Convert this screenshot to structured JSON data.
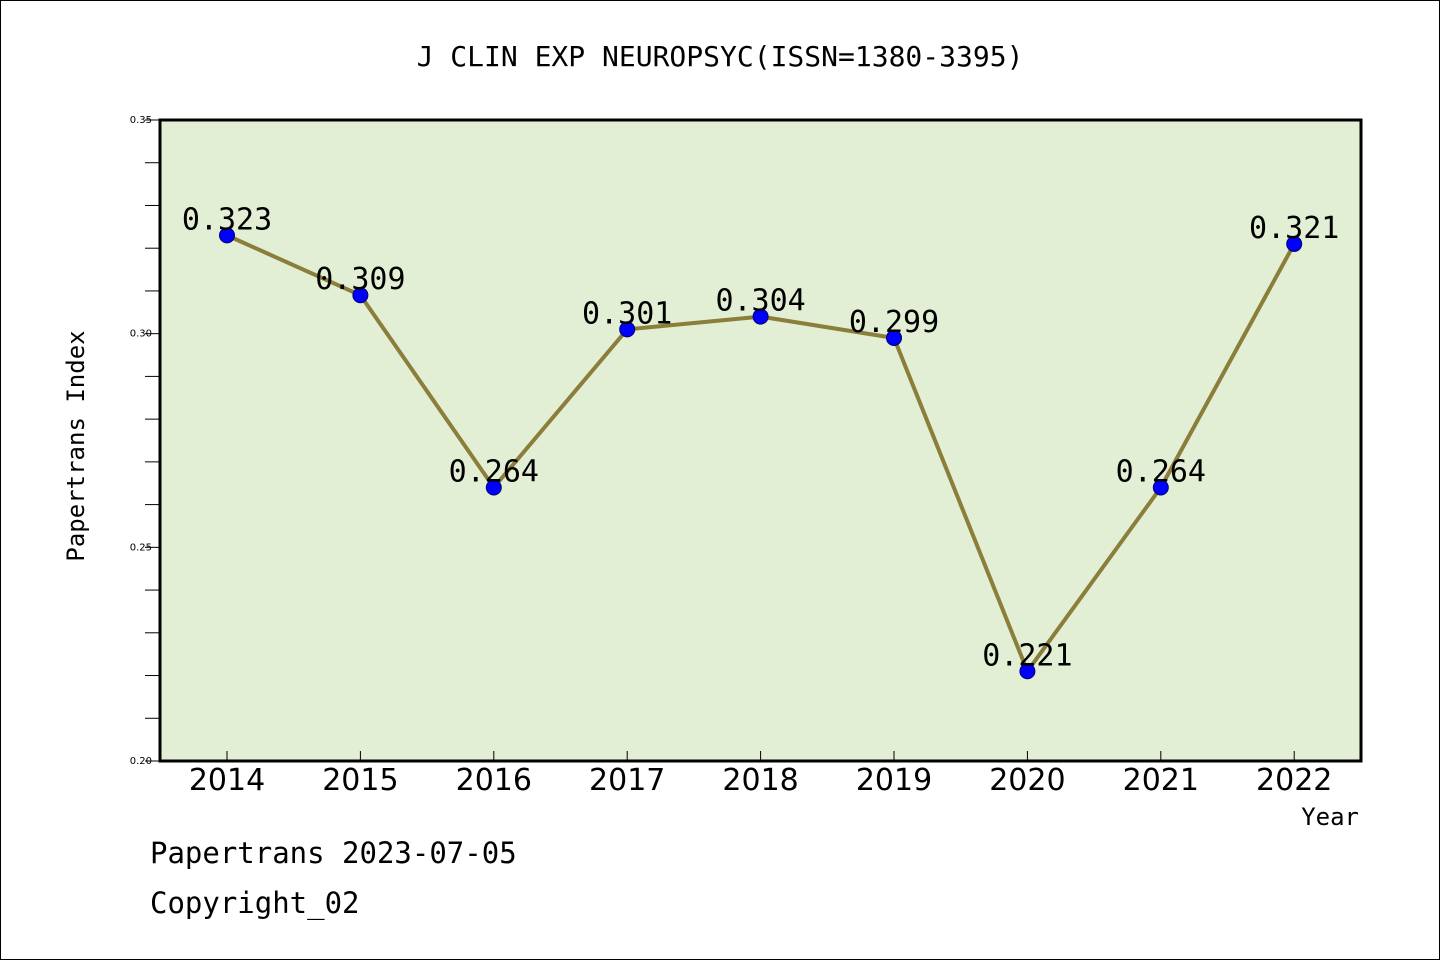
{
  "chart_data": {
    "type": "line",
    "title": "J CLIN EXP NEUROPSYC(ISSN=1380-3395)",
    "xlabel": "Year",
    "ylabel": "Papertrans Index",
    "categories": [
      "2014",
      "2015",
      "2016",
      "2017",
      "2018",
      "2019",
      "2020",
      "2021",
      "2022"
    ],
    "values": [
      0.323,
      0.309,
      0.264,
      0.301,
      0.304,
      0.299,
      0.221,
      0.264,
      0.321
    ],
    "value_labels": [
      "0.323",
      "0.309",
      "0.264",
      "0.301",
      "0.304",
      "0.299",
      "0.221",
      "0.264",
      "0.321"
    ],
    "ylim": [
      0.2,
      0.35
    ],
    "yticks": [
      "0.20",
      "0.25",
      "0.30",
      "0.35"
    ],
    "grid": false,
    "colors": {
      "plot_bg": "#e2efd5",
      "line": "#8b7d3a",
      "marker": "#0000ff"
    }
  },
  "footer": {
    "line1": "Papertrans 2023-07-05",
    "line2": "Copyright_02"
  }
}
